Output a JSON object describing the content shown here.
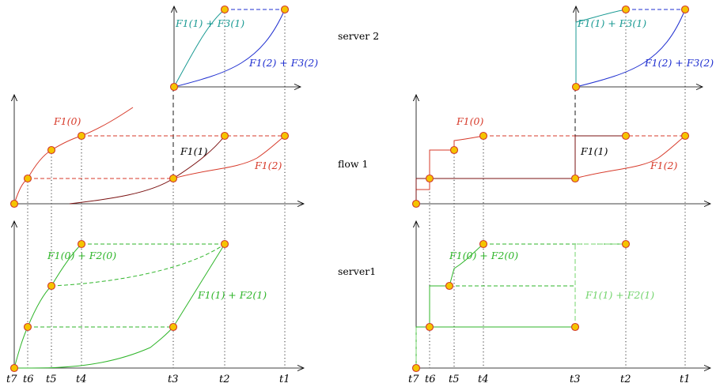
{
  "rows": {
    "server2": "server 2",
    "flow1": "flow 1",
    "server1": "server1"
  },
  "ticks": [
    "t7",
    "t6",
    "t5",
    "t4",
    "t3",
    "t2",
    "t1"
  ],
  "curve_labels": {
    "s2_agg1": "F1(1) + F3(1)",
    "s2_agg2": "F1(2) + F3(2)",
    "f1_0": "F1(0)",
    "f1_1": "F1(1)",
    "f1_2": "F1(2)",
    "s1_agg0": "F1(0) + F2(0)",
    "s1_agg1": "F1(1) + F2(1)"
  },
  "colors": {
    "teal": "#1a9a93",
    "blue": "#1f2fd0",
    "red": "#d73a2a",
    "darkred": "#7a1010",
    "green": "#2fb52a",
    "lightgreen": "#74d46e",
    "dot_fill": "#f5c400",
    "dot_stroke": "#d23a2a"
  }
}
